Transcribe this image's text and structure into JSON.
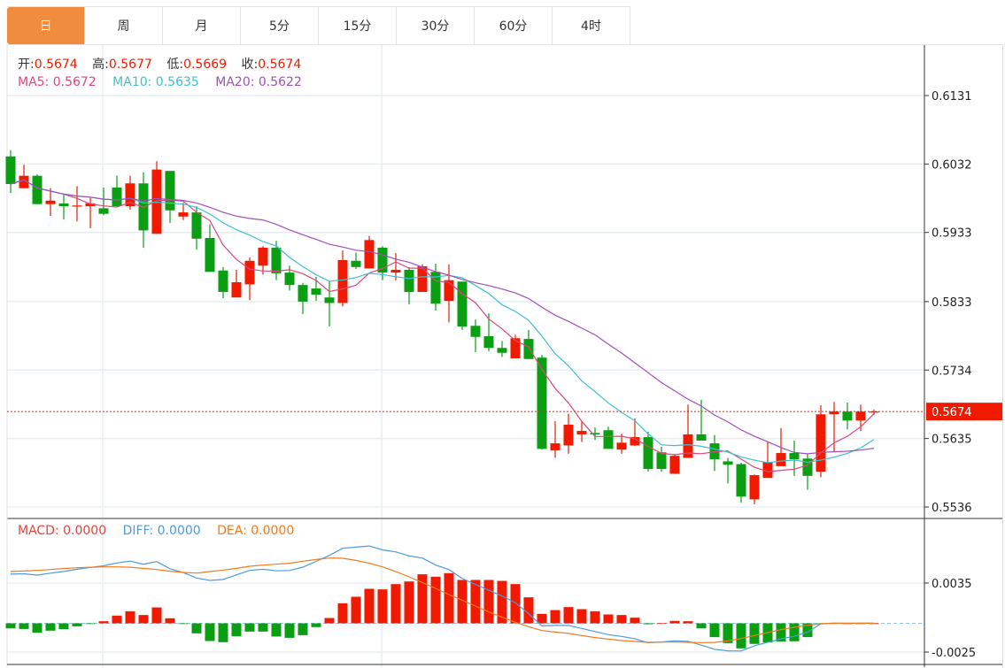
{
  "tabs": [
    {
      "label": "日",
      "active": true
    },
    {
      "label": "周",
      "active": false
    },
    {
      "label": "月",
      "active": false
    },
    {
      "label": "5分",
      "active": false
    },
    {
      "label": "15分",
      "active": false
    },
    {
      "label": "30分",
      "active": false
    },
    {
      "label": "60分",
      "active": false
    },
    {
      "label": "4时",
      "active": false
    }
  ],
  "ohlc_legend": {
    "open_label": "开:",
    "open": "0.5674",
    "high_label": "高:",
    "high": "0.5677",
    "low_label": "低:",
    "low": "0.5669",
    "close_label": "收:",
    "close": "0.5674"
  },
  "ma_legend": {
    "ma5": "MA5: 0.5672",
    "ma10": "MA10: 0.5635",
    "ma20": "MA20: 0.5622"
  },
  "macd_legend": {
    "macd": "MACD: 0.0000",
    "diff": "DIFF: 0.0000",
    "dea": "DEA: 0.0000"
  },
  "colors": {
    "up": "#f01a00",
    "down": "#0a9e12",
    "ma5": "#e0457b",
    "ma10": "#3cc0d2",
    "ma20": "#a24fb8",
    "diff": "#4a9be0",
    "dea": "#f07a1e",
    "tab_active": "#f08c3e"
  },
  "chart_data": [
    {
      "type": "candlestick",
      "title": "",
      "y_ticks": [
        "0.6131",
        "0.6032",
        "0.5933",
        "0.5833",
        "0.5734",
        "0.5635",
        "0.5536"
      ],
      "ylim": [
        0.5536,
        0.6131
      ],
      "current_price": "0.5674",
      "grid": true,
      "ohlc": [
        [
          0.6043,
          0.6052,
          0.599,
          0.6003
        ],
        [
          0.5997,
          0.6031,
          0.5997,
          0.6015
        ],
        [
          0.6015,
          0.6017,
          0.5974,
          0.5974
        ],
        [
          0.5974,
          0.5997,
          0.5957,
          0.5979
        ],
        [
          0.5975,
          0.5989,
          0.5952,
          0.5971
        ],
        [
          0.5971,
          0.6,
          0.5949,
          0.5972
        ],
        [
          0.5971,
          0.5983,
          0.5939,
          0.5975
        ],
        [
          0.5968,
          0.5998,
          0.5958,
          0.596
        ],
        [
          0.5998,
          0.6015,
          0.5971,
          0.5971
        ],
        [
          0.5971,
          0.6015,
          0.5966,
          0.6004
        ],
        [
          0.6004,
          0.602,
          0.5911,
          0.5936
        ],
        [
          0.5931,
          0.6036,
          0.5931,
          0.6024
        ],
        [
          0.6022,
          0.6022,
          0.5947,
          0.5965
        ],
        [
          0.5956,
          0.5976,
          0.5951,
          0.5962
        ],
        [
          0.5962,
          0.5971,
          0.5908,
          0.5924
        ],
        [
          0.5925,
          0.5945,
          0.5876,
          0.5876
        ],
        [
          0.5878,
          0.5883,
          0.5838,
          0.5847
        ],
        [
          0.5839,
          0.5879,
          0.5839,
          0.5861
        ],
        [
          0.5858,
          0.5897,
          0.5835,
          0.5892
        ],
        [
          0.5885,
          0.5913,
          0.5872,
          0.5911
        ],
        [
          0.5911,
          0.5921,
          0.5864,
          0.5874
        ],
        [
          0.5875,
          0.5885,
          0.5849,
          0.5857
        ],
        [
          0.5857,
          0.586,
          0.5815,
          0.5833
        ],
        [
          0.5852,
          0.5869,
          0.5834,
          0.5843
        ],
        [
          0.5839,
          0.5862,
          0.5797,
          0.5831
        ],
        [
          0.5831,
          0.5907,
          0.5826,
          0.5893
        ],
        [
          0.5892,
          0.5904,
          0.588,
          0.5883
        ],
        [
          0.5881,
          0.5928,
          0.5881,
          0.5922
        ],
        [
          0.5911,
          0.5913,
          0.5864,
          0.5875
        ],
        [
          0.5875,
          0.5903,
          0.5864,
          0.5879
        ],
        [
          0.5879,
          0.5883,
          0.5829,
          0.5847
        ],
        [
          0.5847,
          0.5887,
          0.5847,
          0.5884
        ],
        [
          0.5876,
          0.5888,
          0.582,
          0.583
        ],
        [
          0.5834,
          0.5887,
          0.5803,
          0.5864
        ],
        [
          0.5862,
          0.5862,
          0.5792,
          0.5797
        ],
        [
          0.5798,
          0.5807,
          0.576,
          0.5782
        ],
        [
          0.5783,
          0.5816,
          0.5761,
          0.5766
        ],
        [
          0.5766,
          0.5776,
          0.5753,
          0.5759
        ],
        [
          0.5751,
          0.5785,
          0.5751,
          0.578
        ],
        [
          0.5779,
          0.5792,
          0.575,
          0.575
        ],
        [
          0.5752,
          0.5756,
          0.5619,
          0.562
        ],
        [
          0.5618,
          0.566,
          0.5607,
          0.5628
        ],
        [
          0.5625,
          0.5671,
          0.5613,
          0.5655
        ],
        [
          0.5641,
          0.566,
          0.563,
          0.5646
        ],
        [
          0.5643,
          0.5651,
          0.5633,
          0.5641
        ],
        [
          0.5647,
          0.5652,
          0.562,
          0.562
        ],
        [
          0.5619,
          0.5642,
          0.5613,
          0.5629
        ],
        [
          0.5625,
          0.5664,
          0.5624,
          0.5637
        ],
        [
          0.5637,
          0.5645,
          0.5587,
          0.5591
        ],
        [
          0.5615,
          0.5623,
          0.5587,
          0.5591
        ],
        [
          0.5584,
          0.5613,
          0.5584,
          0.561
        ],
        [
          0.5607,
          0.5684,
          0.5607,
          0.5641
        ],
        [
          0.5641,
          0.5691,
          0.5632,
          0.5632
        ],
        [
          0.5628,
          0.564,
          0.5588,
          0.5605
        ],
        [
          0.5602,
          0.5607,
          0.557,
          0.5597
        ],
        [
          0.5598,
          0.56,
          0.5542,
          0.5551
        ],
        [
          0.5547,
          0.5583,
          0.554,
          0.5582
        ],
        [
          0.5578,
          0.5631,
          0.5578,
          0.5601
        ],
        [
          0.5595,
          0.565,
          0.5595,
          0.5614
        ],
        [
          0.5614,
          0.5632,
          0.5581,
          0.5605
        ],
        [
          0.5606,
          0.5613,
          0.5561,
          0.5581
        ],
        [
          0.5587,
          0.5683,
          0.5579,
          0.567
        ],
        [
          0.567,
          0.5688,
          0.5615,
          0.5674
        ],
        [
          0.5674,
          0.5687,
          0.5648,
          0.5661
        ],
        [
          0.5661,
          0.5684,
          0.5646,
          0.5674
        ],
        [
          0.5674,
          0.5677,
          0.5669,
          0.5674
        ]
      ],
      "ma_periods": [
        5,
        10,
        20
      ]
    },
    {
      "type": "bar",
      "title": "MACD",
      "y_ticks": [
        "0.0035",
        "-0.0025"
      ],
      "ylim": [
        -0.0025,
        0.0035
      ],
      "macd": [
        -0.00044,
        -0.00049,
        -0.00082,
        -0.00064,
        -0.00051,
        -0.00026,
        -4e-05,
        0.00018,
        0.00067,
        0.00105,
        0.00072,
        0.00138,
        0.00044,
        -2e-05,
        -0.00087,
        -0.00154,
        -0.00164,
        -0.00113,
        -0.00072,
        -0.00072,
        -0.00115,
        -0.00126,
        -0.00103,
        -0.00033,
        0.00046,
        0.00174,
        0.00231,
        0.003,
        0.00295,
        0.00341,
        0.00364,
        0.00426,
        0.00405,
        0.00436,
        0.00377,
        0.00377,
        0.00377,
        0.00369,
        0.00341,
        0.00226,
        0.00082,
        0.00115,
        0.00141,
        0.00123,
        0.00105,
        0.00077,
        0.00072,
        0.00049,
        -8e-05,
        1e-05,
        0.00021,
        0.00018,
        -0.00044,
        -0.0012,
        -0.00172,
        -0.00218,
        -0.00179,
        -0.00167,
        -0.00159,
        -0.00156,
        -0.0012,
        -2e-05,
        1e-05,
        -3e-05,
        0,
        0
      ],
      "dea": [
        0.0045,
        0.00455,
        0.0046,
        0.00468,
        0.00476,
        0.00483,
        0.00488,
        0.00491,
        0.00491,
        0.00488,
        0.00478,
        0.00468,
        0.00453,
        0.00442,
        0.00437,
        0.0045,
        0.00463,
        0.00478,
        0.00496,
        0.00506,
        0.00514,
        0.00522,
        0.0054,
        0.00555,
        0.00568,
        0.00565,
        0.00547,
        0.00522,
        0.00491,
        0.0045,
        0.00404,
        0.00355,
        0.00304,
        0.0025,
        0.00201,
        0.0015,
        0.00099,
        0.00053,
        9e-05,
        -0.00029,
        -0.00063,
        -0.00076,
        -0.00088,
        -0.00106,
        -0.00124,
        -0.00137,
        -0.0015,
        -0.00158,
        -0.00165,
        -0.00163,
        -0.00163,
        -0.00165,
        -0.00168,
        -0.00165,
        -0.00153,
        -0.00132,
        -0.00106,
        -0.00081,
        -0.00055,
        -0.00035,
        -0.00017,
        -4e-05,
        1e-05,
        1e-05,
        1e-05,
        1e-05
      ]
    }
  ]
}
